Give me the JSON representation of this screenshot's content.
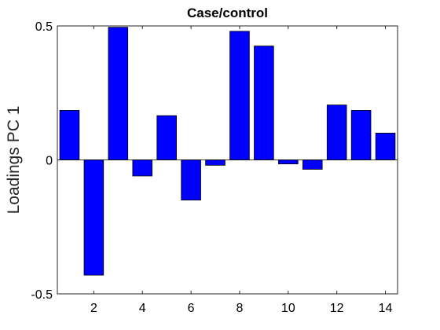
{
  "chart_data": {
    "type": "bar",
    "title": "Case/control",
    "xlabel": "",
    "ylabel": "Loadings PC 1",
    "categories": [
      1,
      2,
      3,
      4,
      5,
      6,
      7,
      8,
      9,
      10,
      11,
      12,
      13,
      14
    ],
    "values": [
      0.185,
      -0.43,
      0.495,
      -0.06,
      0.165,
      -0.15,
      -0.02,
      0.48,
      0.425,
      -0.015,
      -0.035,
      0.205,
      0.185,
      0.1
    ],
    "xlim": [
      0.5,
      14.5
    ],
    "ylim": [
      -0.5,
      0.5
    ],
    "xticks": [
      2,
      4,
      6,
      8,
      10,
      12,
      14
    ],
    "yticks": [
      -0.5,
      0,
      0.5
    ],
    "ytick_labels": [
      "-0.5",
      "0",
      "0.5"
    ],
    "grid": false,
    "bar_color": "#0000ff",
    "edge_color": "#000000"
  }
}
